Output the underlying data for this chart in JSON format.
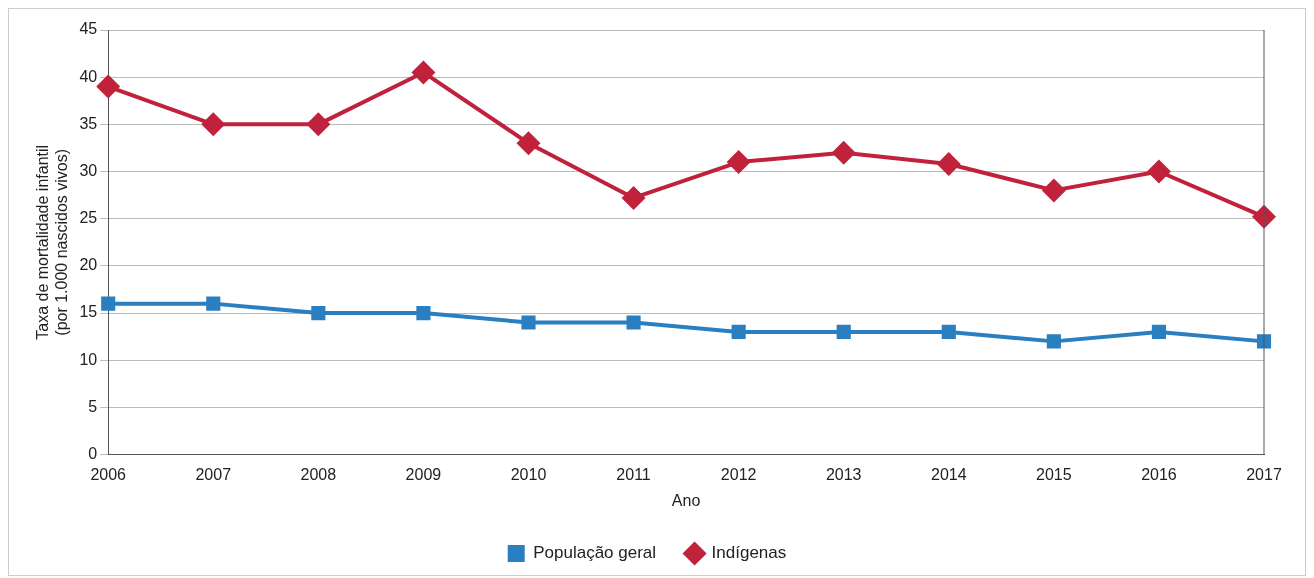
{
  "chart_data": {
    "type": "line",
    "xlabel": "Ano",
    "ylabel": "Taxa de mortalidade infantil\n(por 1.000 nascidos vivos)",
    "categories": [
      "2006",
      "2007",
      "2008",
      "2009",
      "2010",
      "2011",
      "2012",
      "2013",
      "2014",
      "2015",
      "2016",
      "2017"
    ],
    "series": [
      {
        "name": "População geral",
        "color": "#2a7fc1",
        "marker": "square",
        "values": [
          16,
          16,
          15,
          15,
          14,
          14,
          13,
          13,
          13,
          12,
          13,
          12
        ]
      },
      {
        "name": "Indígenas",
        "color": "#c0223b",
        "marker": "diamond",
        "values": [
          39,
          35,
          35,
          40.5,
          33,
          27.2,
          31,
          32,
          30.8,
          28,
          30,
          25.2
        ]
      }
    ],
    "ylim": [
      0,
      45
    ],
    "yticks": [
      0,
      5,
      10,
      15,
      20,
      25,
      30,
      35,
      40,
      45
    ],
    "grid": "y",
    "legend": "bottom",
    "line_style": "solid"
  }
}
